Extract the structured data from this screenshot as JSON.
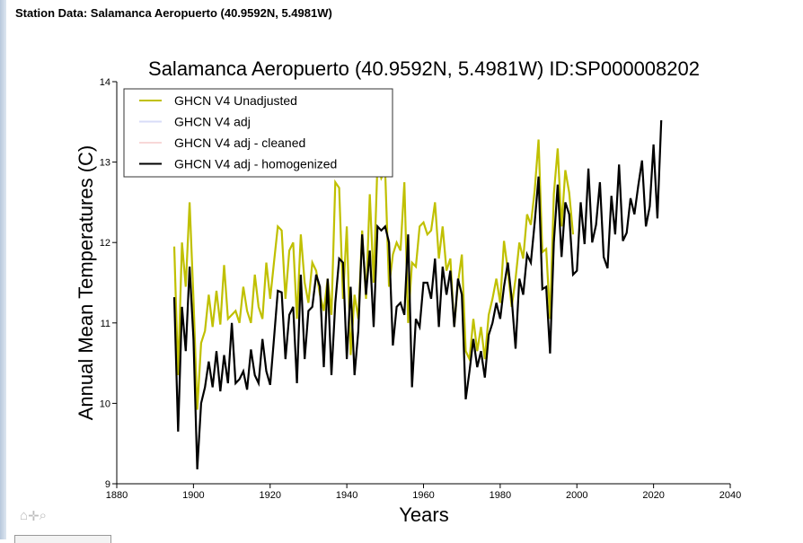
{
  "page": {
    "header": "Station Data: Salamanca Aeropuerto (40.9592N, 5.4981W)"
  },
  "toolbar": {
    "icons": [
      "home-icon",
      "pan-icon",
      "zoom-icon"
    ],
    "home": "⌂",
    "pan": "✛",
    "zoom": "⌕"
  },
  "chart_data": {
    "type": "line",
    "title": "Salamanca Aeropuerto (40.9592N, 5.4981W) ID:SP000008202",
    "xlabel": "Years",
    "ylabel": "Annual Mean Temperatures (C)",
    "xlim": [
      1880,
      2040
    ],
    "ylim": [
      9,
      14
    ],
    "xticks": [
      1880,
      1900,
      1920,
      1940,
      1960,
      1980,
      2000,
      2020,
      2040
    ],
    "yticks": [
      9,
      10,
      11,
      12,
      13,
      14
    ],
    "grid": false,
    "legend": {
      "placement": "top-left",
      "entries": [
        {
          "name": "GHCN V4 Unadjusted",
          "color": "#c0c000"
        },
        {
          "name": "GHCN V4 adj",
          "color": "#d8dcf8"
        },
        {
          "name": "GHCN V4 adj - cleaned",
          "color": "#f8d8d8"
        },
        {
          "name": "GHCN V4 adj - homogenized",
          "color": "#000000"
        }
      ]
    },
    "series": [
      {
        "name": "GHCN V4 Unadjusted",
        "color": "#c0c000",
        "start_year": 1895,
        "values": [
          11.95,
          10.35,
          12.0,
          11.45,
          12.5,
          11.3,
          9.92,
          10.75,
          10.9,
          11.35,
          10.95,
          11.4,
          10.98,
          11.72,
          11.05,
          11.1,
          11.15,
          11.0,
          11.45,
          11.15,
          11.0,
          11.6,
          11.2,
          11.05,
          11.75,
          11.3,
          11.75,
          12.2,
          12.15,
          11.3,
          11.9,
          12.0,
          11.05,
          12.1,
          11.5,
          11.25,
          11.75,
          11.65,
          11.35,
          11.15,
          11.55,
          11.1,
          12.75,
          12.68,
          11.3,
          12.2,
          10.6,
          11.35,
          11.05,
          12.15,
          11.3,
          12.6,
          11.5,
          13.0,
          12.8,
          12.9,
          11.45,
          11.85,
          12.0,
          11.9,
          12.75,
          11.0,
          11.75,
          11.7,
          12.2,
          12.25,
          12.1,
          12.15,
          12.5,
          11.8,
          12.2,
          11.65,
          11.8,
          10.95,
          11.5,
          11.85,
          10.65,
          10.55,
          11.05,
          10.65,
          10.95,
          10.55,
          11.1,
          11.3,
          11.55,
          11.25,
          12.02,
          11.65,
          11.2,
          11.55,
          12.0,
          11.8,
          12.35,
          12.22,
          12.65,
          13.28,
          11.88,
          11.92,
          11.05,
          12.6,
          13.17,
          12.2,
          12.9,
          12.62,
          12.1
        ]
      },
      {
        "name": "GHCN V4 adj",
        "color": "#d8dcf8",
        "start_year": 1895,
        "values": []
      },
      {
        "name": "GHCN V4 adj - cleaned",
        "color": "#f8d8d8",
        "start_year": 1895,
        "values": []
      },
      {
        "name": "GHCN V4 adj - homogenized",
        "color": "#000000",
        "start_year": 1895,
        "values": [
          11.32,
          9.65,
          11.2,
          10.65,
          11.7,
          10.8,
          9.18,
          10.0,
          10.2,
          10.52,
          10.2,
          10.65,
          10.15,
          10.6,
          10.25,
          11.0,
          10.25,
          10.3,
          10.4,
          10.17,
          10.67,
          10.35,
          10.25,
          10.8,
          10.4,
          10.23,
          10.8,
          11.4,
          11.38,
          10.55,
          11.1,
          11.2,
          10.25,
          11.6,
          10.55,
          11.15,
          11.2,
          11.6,
          11.45,
          10.45,
          11.55,
          10.35,
          11.25,
          11.8,
          11.75,
          10.55,
          11.45,
          10.35,
          10.9,
          12.1,
          11.35,
          11.9,
          10.95,
          12.2,
          12.15,
          12.2,
          12.0,
          10.72,
          11.2,
          11.25,
          11.1,
          12.1,
          10.2,
          11.05,
          10.95,
          11.5,
          11.5,
          11.3,
          11.8,
          10.95,
          11.7,
          11.35,
          11.65,
          10.95,
          11.55,
          11.35,
          10.05,
          10.4,
          10.8,
          10.45,
          10.65,
          10.32,
          10.85,
          11.0,
          11.25,
          11.05,
          11.45,
          11.75,
          11.3,
          10.68,
          11.55,
          11.35,
          11.85,
          11.75,
          12.25,
          12.82,
          11.42,
          11.45,
          10.62,
          12.0,
          12.72,
          11.82,
          12.5,
          12.35,
          11.6,
          11.65,
          12.5,
          11.98,
          12.92,
          12.0,
          12.22,
          12.75,
          11.82,
          11.68,
          12.58,
          12.1,
          12.97,
          12.02,
          12.12,
          12.55,
          12.35,
          12.7,
          13.02,
          12.2,
          12.45,
          13.22,
          12.3,
          13.52
        ]
      }
    ]
  }
}
